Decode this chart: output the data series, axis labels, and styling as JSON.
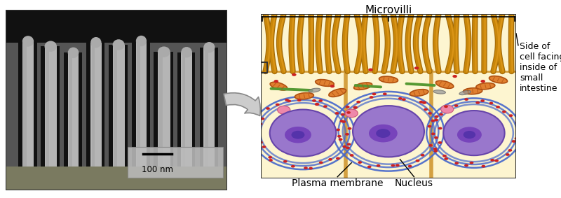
{
  "fig_width": 8.0,
  "fig_height": 2.83,
  "dpi": 100,
  "bg_color": "#ffffff",
  "labels": {
    "microvilli": "Microvilli",
    "side_of_cell": "Side of\ncell facing\ninside of\nsmall\nintestine",
    "plasma_membrane": "Plasma membrane",
    "nucleus": "Nucleus",
    "scale_bar": "100 nm"
  },
  "colors": {
    "mv_fill": "#c8860a",
    "mv_dark": "#a06808",
    "cell_bg": "#fdf5d0",
    "cell_wall": "#d4a040",
    "nucleus_fill": "#9977cc",
    "nucleus_outline": "#6644aa",
    "nucleolus": "#7755bb",
    "er_blue": "#4466cc",
    "er_dot": "#cc2222",
    "mito_fill": "#e08030",
    "mito_outline": "#b05010",
    "green_line": "#559933",
    "gray_shape": "#999999",
    "pink_dot": "#ee88aa",
    "black": "#000000",
    "arrow_fill": "#cccccc",
    "arrow_edge": "#888888",
    "em_dark": "#1e1e1e",
    "em_mid": "#555555",
    "em_light": "#c0c0c0",
    "em_base": "#7a7a60"
  }
}
